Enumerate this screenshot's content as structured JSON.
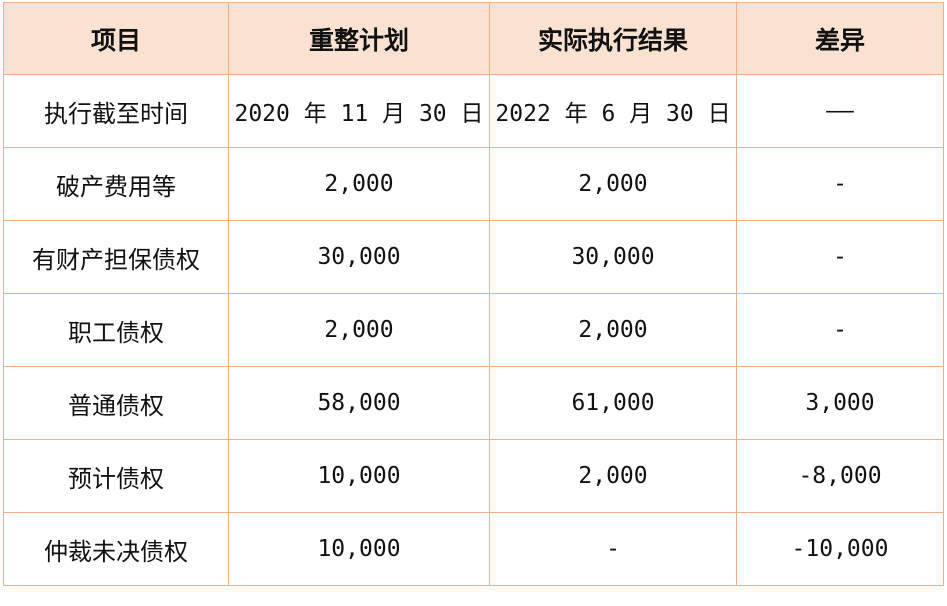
{
  "table": {
    "headers": [
      "项目",
      "重整计划",
      "实际执行结果",
      "差异"
    ],
    "rows": [
      [
        "执行截至时间",
        "2020 年 11 月 30 日",
        "2022 年 6 月 30 日",
        "——"
      ],
      [
        "破产费用等",
        "2,000",
        "2,000",
        "-"
      ],
      [
        "有财产担保债权",
        "30,000",
        "30,000",
        "-"
      ],
      [
        "职工债权",
        "2,000",
        "2,000",
        "-"
      ],
      [
        "普通债权",
        "58,000",
        "61,000",
        "3,000"
      ],
      [
        "预计债权",
        "10,000",
        "2,000",
        "-8,000"
      ],
      [
        "仲裁未决债权",
        "10,000",
        "-",
        "-10,000"
      ]
    ]
  },
  "colors": {
    "border": "#f2b184",
    "header_background": "#fbe1cf",
    "text": "#111111"
  }
}
